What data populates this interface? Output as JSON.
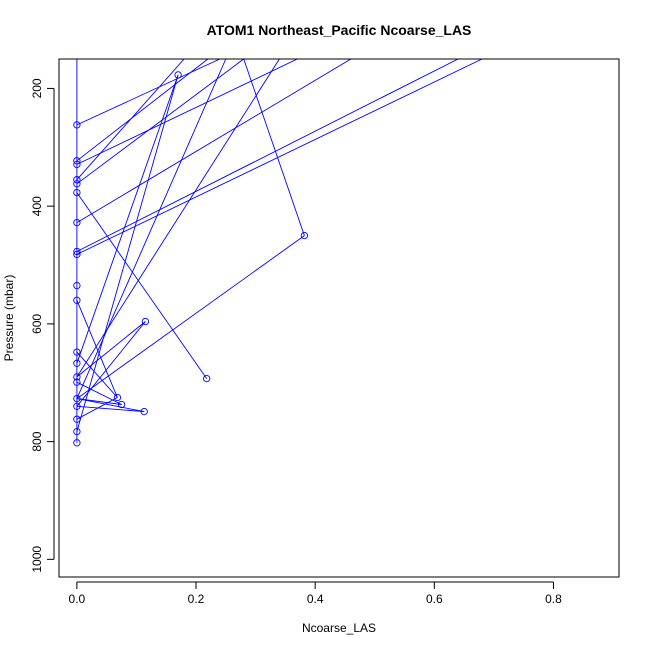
{
  "chart_data": {
    "type": "line",
    "title": "ATOM1 Northeast_Pacific Ncoarse_LAS",
    "xlabel": "Ncoarse_LAS",
    "ylabel": "Pressure (mbar)",
    "xlim": [
      -0.03,
      0.91
    ],
    "ylim": [
      1030,
      150
    ],
    "y_reversed": true,
    "xticks": [
      0.0,
      0.2,
      0.4,
      0.6,
      0.8
    ],
    "xtick_labels": [
      "0.0",
      "0.2",
      "0.4",
      "0.6",
      "0.8"
    ],
    "yticks": [
      200,
      400,
      600,
      800,
      1000
    ],
    "ytick_labels": [
      "200",
      "400",
      "600",
      "800",
      "1000"
    ],
    "grid": false,
    "legend": "none",
    "series_color": "#0000ff",
    "points": [
      {
        "x": 0.0,
        "y": 802
      },
      {
        "x": 0.0,
        "y": 783
      },
      {
        "x": 0.0,
        "y": 762
      },
      {
        "x": 0.0,
        "y": 740
      },
      {
        "x": 0.0,
        "y": 727
      },
      {
        "x": 0.0,
        "y": 699
      },
      {
        "x": 0.0,
        "y": 690
      },
      {
        "x": 0.0,
        "y": 667
      },
      {
        "x": 0.0,
        "y": 648
      },
      {
        "x": 0.0,
        "y": 560
      },
      {
        "x": 0.0,
        "y": 535
      },
      {
        "x": 0.0,
        "y": 482
      },
      {
        "x": 0.0,
        "y": 477
      },
      {
        "x": 0.0,
        "y": 428
      },
      {
        "x": 0.0,
        "y": 377
      },
      {
        "x": 0.0,
        "y": 362
      },
      {
        "x": 0.0,
        "y": 355
      },
      {
        "x": 0.0,
        "y": 329
      },
      {
        "x": 0.0,
        "y": 323
      },
      {
        "x": 0.0,
        "y": 262
      },
      {
        "x": 0.068,
        "y": 725
      },
      {
        "x": 0.075,
        "y": 737
      },
      {
        "x": 0.113,
        "y": 749
      },
      {
        "x": 0.115,
        "y": 596
      },
      {
        "x": 0.17,
        "y": 177
      },
      {
        "x": 0.218,
        "y": 693
      },
      {
        "x": 0.382,
        "y": 450
      }
    ],
    "segments": [
      {
        "x": [
          0.0,
          0.0
        ],
        "y": [
          802,
          150
        ]
      },
      {
        "x": [
          0.0,
          0.382
        ],
        "y": [
          727,
          450
        ]
      },
      {
        "x": [
          0.382,
          0.28
        ],
        "y": [
          450,
          150
        ]
      },
      {
        "x": [
          0.0,
          0.218
        ],
        "y": [
          377,
          693
        ]
      },
      {
        "x": [
          0.0,
          0.115
        ],
        "y": [
          690,
          596
        ]
      },
      {
        "x": [
          0.115,
          0.0
        ],
        "y": [
          596,
          740
        ]
      },
      {
        "x": [
          0.0,
          0.113
        ],
        "y": [
          727,
          749
        ]
      },
      {
        "x": [
          0.113,
          0.0
        ],
        "y": [
          749,
          740
        ]
      },
      {
        "x": [
          0.0,
          0.075
        ],
        "y": [
          699,
          737
        ]
      },
      {
        "x": [
          0.075,
          0.0
        ],
        "y": [
          737,
          727
        ]
      },
      {
        "x": [
          0.0,
          0.068
        ],
        "y": [
          648,
          725
        ]
      },
      {
        "x": [
          0.068,
          0.0
        ],
        "y": [
          725,
          762
        ]
      },
      {
        "x": [
          0.0,
          0.068
        ],
        "y": [
          560,
          725
        ]
      },
      {
        "x": [
          0.0,
          0.17
        ],
        "y": [
          783,
          177
        ]
      },
      {
        "x": [
          0.17,
          0.0
        ],
        "y": [
          177,
          667
        ]
      },
      {
        "x": [
          0.0,
          0.24
        ],
        "y": [
          262,
          150
        ]
      },
      {
        "x": [
          0.0,
          0.22
        ],
        "y": [
          323,
          150
        ]
      },
      {
        "x": [
          0.0,
          0.37
        ],
        "y": [
          329,
          150
        ]
      },
      {
        "x": [
          0.0,
          0.18
        ],
        "y": [
          355,
          150
        ]
      },
      {
        "x": [
          0.0,
          0.28
        ],
        "y": [
          362,
          150
        ]
      },
      {
        "x": [
          0.0,
          0.46
        ],
        "y": [
          428,
          150
        ]
      },
      {
        "x": [
          0.0,
          0.64
        ],
        "y": [
          477,
          150
        ]
      },
      {
        "x": [
          0.0,
          0.68
        ],
        "y": [
          482,
          150
        ]
      },
      {
        "x": [
          0.0,
          0.34
        ],
        "y": [
          690,
          150
        ]
      },
      {
        "x": [
          0.0,
          0.25
        ],
        "y": [
          727,
          150
        ]
      }
    ]
  }
}
